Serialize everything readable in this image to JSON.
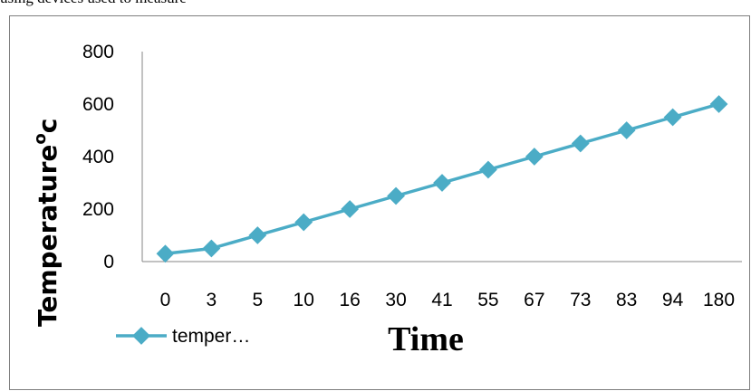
{
  "page": {
    "top_text": "using devices used to measure"
  },
  "chart_data": {
    "type": "line",
    "categories": [
      "0",
      "3",
      "5",
      "10",
      "16",
      "30",
      "41",
      "55",
      "67",
      "73",
      "83",
      "94",
      "180"
    ],
    "series": [
      {
        "name": "temper…",
        "values": [
          30,
          50,
          100,
          150,
          200,
          250,
          300,
          350,
          400,
          450,
          500,
          550,
          600
        ],
        "color": "#4bacc6"
      }
    ],
    "ylim": [
      0,
      800
    ],
    "yticks": [
      "0",
      "200",
      "400",
      "600",
      "800"
    ],
    "ylabel": "Temperature",
    "ylabel_sup": "o",
    "ylabel_suffix": "c",
    "xlabel": "Time",
    "grid": false,
    "legend": "bottom-left"
  }
}
